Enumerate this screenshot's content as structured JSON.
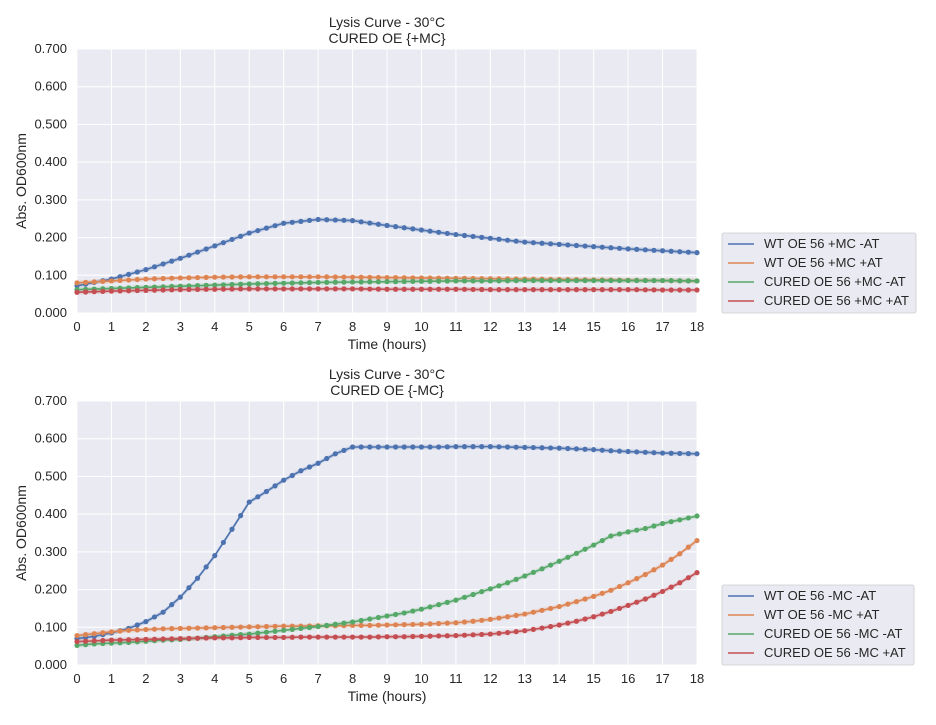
{
  "chart_data": [
    {
      "type": "line",
      "title": "Lysis Curve - 30°C",
      "subtitle": "CURED OE {+MC}",
      "xlabel": "Time (hours)",
      "ylabel": "Abs. OD600nm",
      "xlim": [
        0,
        18
      ],
      "ylim": [
        0,
        0.7
      ],
      "xticks": [
        "0",
        "1",
        "2",
        "3",
        "4",
        "5",
        "6",
        "7",
        "8",
        "9",
        "10",
        "11",
        "12",
        "13",
        "14",
        "15",
        "16",
        "17",
        "18"
      ],
      "yticks": [
        "0.000",
        "0.100",
        "0.200",
        "0.300",
        "0.400",
        "0.500",
        "0.600",
        "0.700"
      ],
      "grid": true,
      "legend_position": "outside-right",
      "x": [
        0,
        1,
        2,
        3,
        4,
        5,
        6,
        7,
        8,
        9,
        10,
        11,
        12,
        13,
        14,
        15,
        16,
        17,
        18
      ],
      "series": [
        {
          "name": "WT OE 56 +MC -AT",
          "color": "#4c72b0",
          "values": [
            0.072,
            0.09,
            0.115,
            0.145,
            0.178,
            0.212,
            0.238,
            0.248,
            0.245,
            0.232,
            0.22,
            0.208,
            0.198,
            0.188,
            0.182,
            0.176,
            0.17,
            0.165,
            0.16
          ]
        },
        {
          "name": "WT OE 56 +MC +AT",
          "color": "#dd8452",
          "values": [
            0.08,
            0.085,
            0.09,
            0.093,
            0.095,
            0.096,
            0.096,
            0.096,
            0.095,
            0.094,
            0.093,
            0.092,
            0.091,
            0.09,
            0.089,
            0.088,
            0.087,
            0.086,
            0.085
          ]
        },
        {
          "name": "CURED OE 56 +MC -AT",
          "color": "#55a868",
          "values": [
            0.062,
            0.065,
            0.068,
            0.071,
            0.074,
            0.077,
            0.079,
            0.081,
            0.082,
            0.083,
            0.084,
            0.085,
            0.085,
            0.086,
            0.086,
            0.086,
            0.086,
            0.086,
            0.085
          ]
        },
        {
          "name": "CURED OE 56 +MC +AT",
          "color": "#c44e52",
          "values": [
            0.055,
            0.058,
            0.06,
            0.062,
            0.063,
            0.064,
            0.064,
            0.064,
            0.064,
            0.063,
            0.063,
            0.063,
            0.062,
            0.062,
            0.062,
            0.062,
            0.062,
            0.061,
            0.061
          ]
        }
      ]
    },
    {
      "type": "line",
      "title": "Lysis Curve - 30°C",
      "subtitle": "CURED OE {-MC}",
      "xlabel": "Time (hours)",
      "ylabel": "Abs. OD600nm",
      "xlim": [
        0,
        18
      ],
      "ylim": [
        0,
        0.7
      ],
      "xticks": [
        "0",
        "1",
        "2",
        "3",
        "4",
        "5",
        "6",
        "7",
        "8",
        "9",
        "10",
        "11",
        "12",
        "13",
        "14",
        "15",
        "16",
        "17",
        "18"
      ],
      "yticks": [
        "0.000",
        "0.100",
        "0.200",
        "0.300",
        "0.400",
        "0.500",
        "0.600",
        "0.700"
      ],
      "grid": true,
      "legend_position": "outside-right",
      "x": [
        0,
        0.5,
        1,
        1.5,
        2,
        2.5,
        3,
        3.5,
        4,
        4.5,
        5,
        5.5,
        6,
        6.5,
        7,
        7.5,
        8,
        8.5,
        9,
        9.5,
        10,
        10.5,
        11,
        11.5,
        12,
        12.5,
        13,
        13.5,
        14,
        14.5,
        15,
        15.5,
        16,
        16.5,
        17,
        17.5,
        18
      ],
      "series": [
        {
          "name": "WT OE 56 -MC -AT",
          "color": "#4c72b0",
          "values": [
            0.07,
            0.076,
            0.085,
            0.097,
            0.115,
            0.14,
            0.18,
            0.23,
            0.29,
            0.36,
            0.432,
            0.46,
            0.49,
            0.515,
            0.535,
            0.56,
            0.578,
            0.578,
            0.578,
            0.578,
            0.578,
            0.578,
            0.579,
            0.579,
            0.579,
            0.578,
            0.577,
            0.576,
            0.575,
            0.573,
            0.571,
            0.568,
            0.566,
            0.564,
            0.562,
            0.561,
            0.56
          ]
        },
        {
          "name": "WT OE 56 -MC +AT",
          "color": "#dd8452",
          "values": [
            0.078,
            0.083,
            0.088,
            0.092,
            0.094,
            0.096,
            0.097,
            0.098,
            0.099,
            0.1,
            0.101,
            0.102,
            0.103,
            0.103,
            0.104,
            0.104,
            0.105,
            0.105,
            0.106,
            0.107,
            0.108,
            0.11,
            0.112,
            0.116,
            0.121,
            0.128,
            0.135,
            0.145,
            0.155,
            0.168,
            0.182,
            0.198,
            0.218,
            0.24,
            0.265,
            0.295,
            0.33
          ]
        },
        {
          "name": "CURED OE 56 -MC -AT",
          "color": "#55a868",
          "values": [
            0.052,
            0.056,
            0.058,
            0.06,
            0.063,
            0.066,
            0.068,
            0.071,
            0.075,
            0.079,
            0.082,
            0.087,
            0.092,
            0.097,
            0.102,
            0.108,
            0.114,
            0.122,
            0.13,
            0.138,
            0.148,
            0.16,
            0.172,
            0.187,
            0.202,
            0.218,
            0.236,
            0.255,
            0.275,
            0.296,
            0.318,
            0.342,
            0.353,
            0.362,
            0.375,
            0.385,
            0.395
          ]
        },
        {
          "name": "CURED OE 56 -MC +AT",
          "color": "#c44e52",
          "values": [
            0.062,
            0.064,
            0.066,
            0.067,
            0.068,
            0.069,
            0.07,
            0.071,
            0.072,
            0.072,
            0.073,
            0.073,
            0.073,
            0.074,
            0.074,
            0.074,
            0.074,
            0.074,
            0.075,
            0.075,
            0.076,
            0.077,
            0.078,
            0.08,
            0.082,
            0.086,
            0.091,
            0.098,
            0.106,
            0.116,
            0.128,
            0.142,
            0.158,
            0.175,
            0.195,
            0.218,
            0.245
          ]
        }
      ]
    }
  ]
}
